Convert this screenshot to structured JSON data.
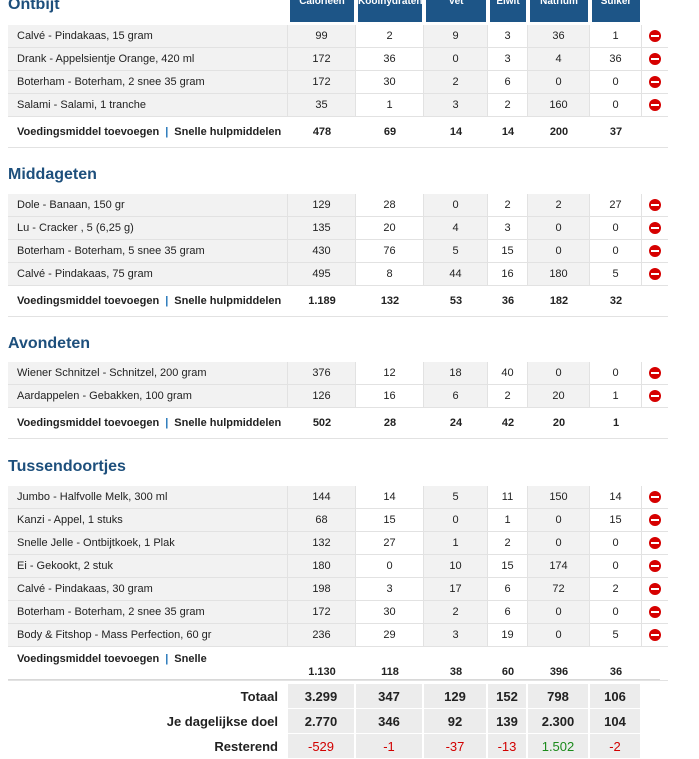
{
  "columns": [
    "Calorieën",
    "Koolhydraten",
    "Vet",
    "Eiwit",
    "Natrium",
    "Suiker"
  ],
  "add_food_label": "Voedingsmiddel toevoegen",
  "quick_tools_label": "Snelle hulpmiddelen",
  "quick_tools_label_short": "Snelle",
  "sections": [
    {
      "title": "Ontbijt",
      "rows": [
        {
          "food": "Calvé - Pindakaas, 15 gram",
          "v": [
            "99",
            "2",
            "9",
            "3",
            "36",
            "1"
          ]
        },
        {
          "food": "Drank - Appelsientje Orange, 420 ml",
          "v": [
            "172",
            "36",
            "0",
            "3",
            "4",
            "36"
          ]
        },
        {
          "food": "Boterham - Boterham, 2 snee 35 gram",
          "v": [
            "172",
            "30",
            "2",
            "6",
            "0",
            "0"
          ]
        },
        {
          "food": "Salami - Salami, 1 tranche",
          "v": [
            "35",
            "1",
            "3",
            "2",
            "160",
            "0"
          ]
        }
      ],
      "totals": [
        "478",
        "69",
        "14",
        "14",
        "200",
        "37"
      ]
    },
    {
      "title": "Middageten",
      "rows": [
        {
          "food": "Dole - Banaan, 150 gr",
          "v": [
            "129",
            "28",
            "0",
            "2",
            "2",
            "27"
          ]
        },
        {
          "food": "Lu - Cracker , 5 (6,25 g)",
          "v": [
            "135",
            "20",
            "4",
            "3",
            "0",
            "0"
          ]
        },
        {
          "food": "Boterham - Boterham, 5 snee 35 gram",
          "v": [
            "430",
            "76",
            "5",
            "15",
            "0",
            "0"
          ]
        },
        {
          "food": "Calvé - Pindakaas, 75 gram",
          "v": [
            "495",
            "8",
            "44",
            "16",
            "180",
            "5"
          ]
        }
      ],
      "totals": [
        "1.189",
        "132",
        "53",
        "36",
        "182",
        "32"
      ]
    },
    {
      "title": "Avondeten",
      "rows": [
        {
          "food": "Wiener Schnitzel - Schnitzel, 200 gram",
          "v": [
            "376",
            "12",
            "18",
            "40",
            "0",
            "0"
          ]
        },
        {
          "food": "Aardappelen - Gebakken, 100 gram",
          "v": [
            "126",
            "16",
            "6",
            "2",
            "20",
            "1"
          ]
        }
      ],
      "totals": [
        "502",
        "28",
        "24",
        "42",
        "20",
        "1"
      ]
    },
    {
      "title": "Tussendoortjes",
      "rows": [
        {
          "food": "Jumbo - Halfvolle Melk, 300 ml",
          "v": [
            "144",
            "14",
            "5",
            "11",
            "150",
            "14"
          ]
        },
        {
          "food": "Kanzi - Appel, 1 stuks",
          "v": [
            "68",
            "15",
            "0",
            "1",
            "0",
            "15"
          ]
        },
        {
          "food": "Snelle Jelle - Ontbijtkoek, 1 Plak",
          "v": [
            "132",
            "27",
            "1",
            "2",
            "0",
            "0"
          ]
        },
        {
          "food": "Ei - Gekookt, 2 stuk",
          "v": [
            "180",
            "0",
            "10",
            "15",
            "174",
            "0"
          ]
        },
        {
          "food": "Calvé - Pindakaas, 30 gram",
          "v": [
            "198",
            "3",
            "17",
            "6",
            "72",
            "2"
          ]
        },
        {
          "food": "Boterham - Boterham, 2 snee 35 gram",
          "v": [
            "172",
            "30",
            "2",
            "6",
            "0",
            "0"
          ]
        },
        {
          "food": "Body & Fitshop - Mass Perfection, 60 gr",
          "v": [
            "236",
            "29",
            "3",
            "19",
            "0",
            "5"
          ]
        }
      ],
      "totals": [
        "1.130",
        "118",
        "38",
        "60",
        "396",
        "36"
      ]
    }
  ],
  "summary": {
    "total_label": "Totaal",
    "total": [
      "3.299",
      "347",
      "129",
      "152",
      "798",
      "106"
    ],
    "goal_label": "Je dagelijkse doel",
    "goal": [
      "2.770",
      "346",
      "92",
      "139",
      "2.300",
      "104"
    ],
    "remaining_label": "Resterend",
    "remaining": [
      "-529",
      "-1",
      "-37",
      "-13",
      "1.502",
      "-2"
    ],
    "remaining_status": [
      "neg",
      "neg",
      "neg",
      "neg",
      "pos",
      "neg"
    ]
  },
  "colors": {
    "header": "#1d5587",
    "section_title": "#1d4f7c",
    "link": "#2375b9",
    "delete": "#d60000",
    "negative": "#d10000",
    "positive": "#1b8a1b"
  },
  "icons": {
    "delete": "remove-circle-icon"
  }
}
